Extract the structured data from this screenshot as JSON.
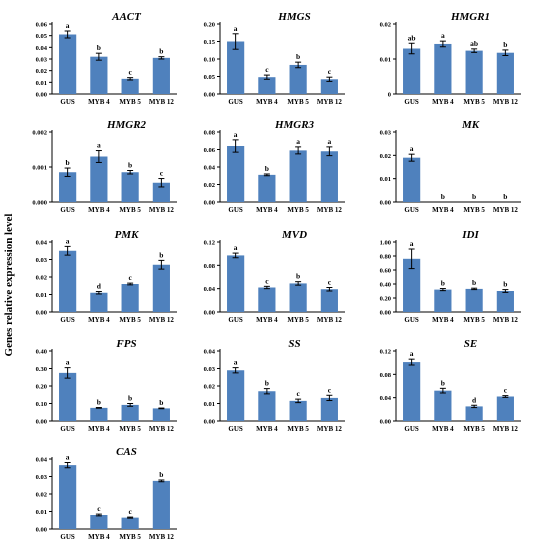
{
  "figure": {
    "ylabel": "Genes relative expression level",
    "colors": {
      "bar": "#4f81bd",
      "axis": "#000000",
      "text": "#000000"
    }
  },
  "chart_data": [
    {
      "type": "bar",
      "title": "AACT",
      "categories": [
        "GUS",
        "MYB 4",
        "MYB 5",
        "MYB 12"
      ],
      "values": [
        0.051,
        0.032,
        0.013,
        0.031
      ],
      "errors": [
        0.003,
        0.003,
        0.001,
        0.001
      ],
      "sig": [
        "a",
        "b",
        "c",
        "b"
      ],
      "ylim": [
        0,
        0.06
      ],
      "yticks": [
        "0.00",
        "0.01",
        "0.02",
        "0.03",
        "0.04",
        "0.05",
        "0.06"
      ]
    },
    {
      "type": "bar",
      "title": "HMGS",
      "categories": [
        "GUS",
        "MYB 4",
        "MYB 5",
        "MYB 12"
      ],
      "values": [
        0.15,
        0.048,
        0.083,
        0.042
      ],
      "errors": [
        0.022,
        0.006,
        0.008,
        0.006
      ],
      "sig": [
        "a",
        "c",
        "b",
        "c"
      ],
      "ylim": [
        0,
        0.2
      ],
      "yticks": [
        "0.00",
        "0.05",
        "0.10",
        "0.15",
        "0.20"
      ]
    },
    {
      "type": "bar",
      "title": "HMGR1",
      "categories": [
        "GUS",
        "MYB 4",
        "MYB 5",
        "MYB 12"
      ],
      "values": [
        0.013,
        0.0143,
        0.0124,
        0.0118
      ],
      "errors": [
        0.0015,
        0.0008,
        0.0005,
        0.0008
      ],
      "sig": [
        "ab",
        "a",
        "ab",
        "b"
      ],
      "ylim": [
        0,
        0.02
      ],
      "yticks": [
        "0",
        "0.01",
        "0.02"
      ]
    },
    {
      "type": "bar",
      "title": "HMGR2",
      "categories": [
        "GUS",
        "MYB 4",
        "MYB 5",
        "MYB 12"
      ],
      "values": [
        0.00085,
        0.0013,
        0.00085,
        0.00055
      ],
      "errors": [
        0.00012,
        0.00017,
        5e-05,
        0.00012
      ],
      "sig": [
        "b",
        "a",
        "b",
        "c"
      ],
      "ylim": [
        0,
        0.002
      ],
      "yticks": [
        "0.000",
        "0.001",
        "0.002"
      ]
    },
    {
      "type": "bar",
      "title": "HMGR3",
      "categories": [
        "GUS",
        "MYB 4",
        "MYB 5",
        "MYB 12"
      ],
      "values": [
        0.064,
        0.031,
        0.059,
        0.058
      ],
      "errors": [
        0.007,
        0.001,
        0.004,
        0.005
      ],
      "sig": [
        "a",
        "b",
        "a",
        "a"
      ],
      "ylim": [
        0,
        0.08
      ],
      "yticks": [
        "0.00",
        "0.02",
        "0.04",
        "0.06",
        "0.08"
      ]
    },
    {
      "type": "bar",
      "title": "MK",
      "categories": [
        "GUS",
        "MYB 4",
        "MYB 5",
        "MYB 12"
      ],
      "values": [
        0.019,
        0,
        0,
        0
      ],
      "errors": [
        0.0015,
        0,
        0,
        0
      ],
      "sig": [
        "a",
        "b",
        "b",
        "b"
      ],
      "ylim": [
        0,
        0.03
      ],
      "yticks": [
        "0.00",
        "0.01",
        "0.02",
        "0.03"
      ]
    },
    {
      "type": "bar",
      "title": "PMK",
      "categories": [
        "GUS",
        "MYB 4",
        "MYB 5",
        "MYB 12"
      ],
      "values": [
        0.035,
        0.011,
        0.016,
        0.027
      ],
      "errors": [
        0.0025,
        0.0007,
        0.0005,
        0.0025
      ],
      "sig": [
        "a",
        "d",
        "c",
        "b"
      ],
      "ylim": [
        0,
        0.04
      ],
      "yticks": [
        "0.00",
        "0.01",
        "0.02",
        "0.03",
        "0.04"
      ]
    },
    {
      "type": "bar",
      "title": "MVD",
      "categories": [
        "GUS",
        "MYB 4",
        "MYB 5",
        "MYB 12"
      ],
      "values": [
        0.097,
        0.042,
        0.049,
        0.039
      ],
      "errors": [
        0.004,
        0.002,
        0.003,
        0.003
      ],
      "sig": [
        "a",
        "c",
        "b",
        "c"
      ],
      "ylim": [
        0,
        0.12
      ],
      "yticks": [
        "0.00",
        "0.04",
        "0.08",
        "0.12"
      ]
    },
    {
      "type": "bar",
      "title": "IDI",
      "categories": [
        "GUS",
        "MYB 4",
        "MYB 5",
        "MYB 12"
      ],
      "values": [
        0.76,
        0.32,
        0.33,
        0.3
      ],
      "errors": [
        0.14,
        0.015,
        0.01,
        0.02
      ],
      "sig": [
        "a",
        "b",
        "b",
        "b"
      ],
      "ylim": [
        0,
        1.0
      ],
      "yticks": [
        "0.00",
        "0.20",
        "0.40",
        "0.60",
        "0.80",
        "1.00"
      ]
    },
    {
      "type": "bar",
      "title": "FPS",
      "categories": [
        "GUS",
        "MYB 4",
        "MYB 5",
        "MYB 12"
      ],
      "values": [
        0.275,
        0.075,
        0.092,
        0.072
      ],
      "errors": [
        0.03,
        0.002,
        0.008,
        0.002
      ],
      "sig": [
        "a",
        "b",
        "b",
        "b"
      ],
      "ylim": [
        0,
        0.4
      ],
      "yticks": [
        "0.00",
        "0.10",
        "0.20",
        "0.30",
        "0.40"
      ]
    },
    {
      "type": "bar",
      "title": "SS",
      "categories": [
        "GUS",
        "MYB 4",
        "MYB 5",
        "MYB 12"
      ],
      "values": [
        0.029,
        0.017,
        0.0115,
        0.0132
      ],
      "errors": [
        0.0015,
        0.0015,
        0.001,
        0.0015
      ],
      "sig": [
        "a",
        "b",
        "c",
        "c"
      ],
      "ylim": [
        0,
        0.04
      ],
      "yticks": [
        "0.00",
        "0.01",
        "0.02",
        "0.03",
        "0.04"
      ]
    },
    {
      "type": "bar",
      "title": "SE",
      "categories": [
        "GUS",
        "MYB 4",
        "MYB 5",
        "MYB 12"
      ],
      "values": [
        0.101,
        0.052,
        0.025,
        0.042
      ],
      "errors": [
        0.005,
        0.004,
        0.002,
        0.0015
      ],
      "sig": [
        "a",
        "b",
        "d",
        "c"
      ],
      "ylim": [
        0,
        0.12
      ],
      "yticks": [
        "0.00",
        "0.04",
        "0.08",
        "0.12"
      ]
    },
    {
      "type": "bar",
      "title": "CAS",
      "categories": [
        "GUS",
        "MYB 4",
        "MYB 5",
        "MYB 12"
      ],
      "values": [
        0.0365,
        0.008,
        0.0065,
        0.0275
      ],
      "errors": [
        0.0015,
        0.0005,
        0.0003,
        0.0005
      ],
      "sig": [
        "a",
        "c",
        "c",
        "b"
      ],
      "ylim": [
        0,
        0.04
      ],
      "yticks": [
        "0.00",
        "0.01",
        "0.02",
        "0.03",
        "0.04"
      ]
    }
  ]
}
